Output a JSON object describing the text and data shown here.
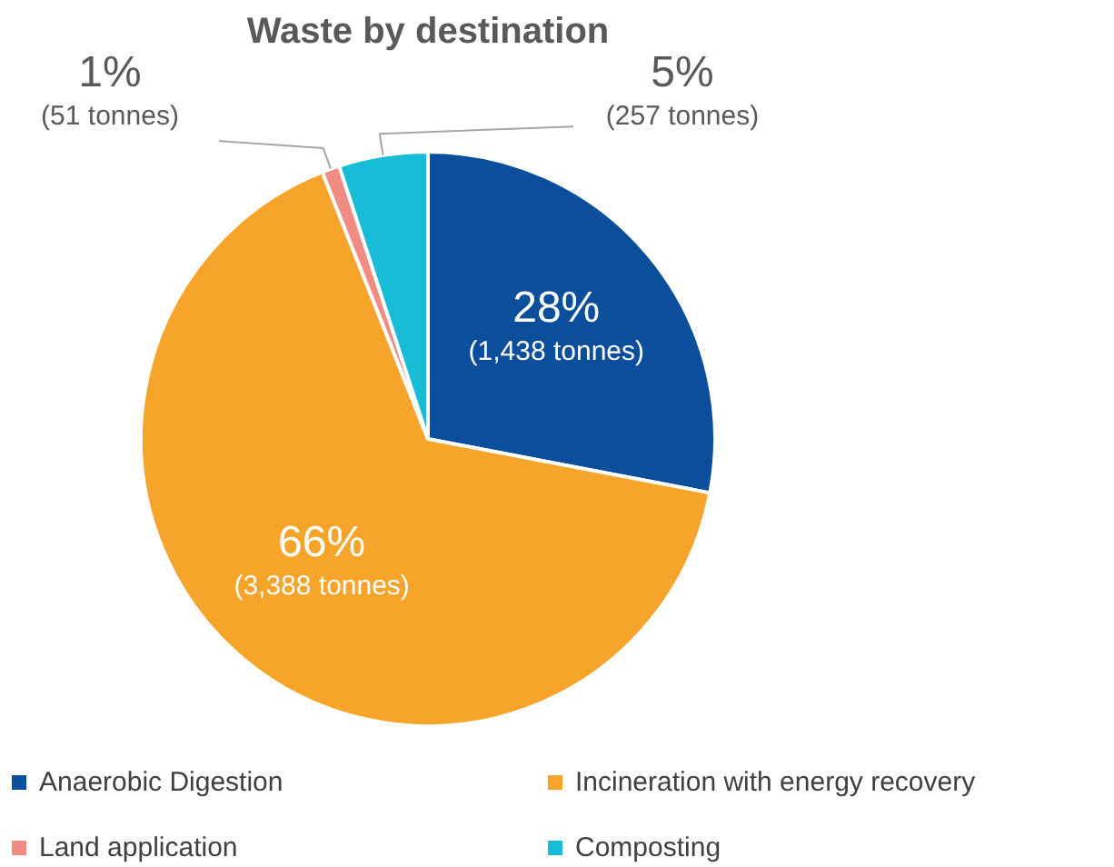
{
  "chart_data": {
    "type": "pie",
    "title": "Waste by destination",
    "categories": [
      "Anaerobic Digestion",
      "Incineration with energy recovery",
      "Land application",
      "Composting"
    ],
    "values": [
      1438,
      3388,
      51,
      257
    ],
    "colors": [
      "#0b4f9c",
      "#f7a42b",
      "#f28b82",
      "#17bcd6"
    ],
    "value_labels": [
      "28%\n(1,438 tonnes)",
      "66%\n(3,388 tonnes)",
      "1%\n(51 tonnes)",
      "5%\n(257 tonnes)"
    ],
    "legend": "bottom"
  }
}
